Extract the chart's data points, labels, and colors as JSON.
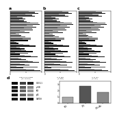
{
  "panels": [
    {
      "label": "a",
      "rows": [
        [
          0.95,
          0.75,
          0.5
        ],
        [
          0.4,
          0.85,
          0.2
        ],
        [
          0.6,
          0.45,
          0.3
        ],
        [
          0.9,
          0.7,
          0.55
        ],
        [
          0.5,
          0.35,
          0.25
        ],
        [
          0.85,
          0.65,
          0.45
        ],
        [
          0.3,
          0.55,
          0.15
        ],
        [
          0.7,
          0.5,
          0.35
        ],
        [
          0.45,
          0.3,
          0.2
        ],
        [
          0.8,
          0.6,
          0.4
        ],
        [
          0.25,
          0.2,
          0.12
        ],
        [
          0.55,
          0.65,
          0.38
        ],
        [
          0.65,
          0.48,
          0.32
        ],
        [
          0.35,
          0.28,
          0.18
        ],
        [
          0.6,
          0.45,
          0.3
        ],
        [
          0.72,
          0.68,
          0.42
        ],
        [
          0.82,
          0.72,
          0.52
        ],
        [
          0.92,
          0.88,
          0.62
        ],
        [
          0.52,
          0.42,
          0.28
        ],
        [
          0.48,
          0.38,
          0.22
        ],
        [
          0.78,
          0.68,
          0.48
        ],
        [
          0.88,
          0.78,
          0.58
        ]
      ],
      "xlim": [
        0,
        1
      ],
      "xlabel": "Log2 Fold Change\n(vs. control)",
      "xtick_labels": [
        "0",
        "1",
        "2",
        "3",
        "4",
        "5"
      ]
    },
    {
      "label": "b",
      "rows": [
        [
          0.95,
          0.75,
          0.5
        ],
        [
          0.2,
          0.85,
          0.1
        ],
        [
          0.7,
          0.5,
          0.3
        ],
        [
          0.88,
          0.68,
          0.48
        ],
        [
          0.55,
          0.38,
          0.22
        ],
        [
          0.82,
          0.62,
          0.42
        ],
        [
          0.35,
          0.58,
          0.18
        ],
        [
          0.72,
          0.52,
          0.32
        ],
        [
          0.42,
          0.28,
          0.15
        ],
        [
          0.78,
          0.58,
          0.38
        ],
        [
          0.28,
          0.22,
          0.12
        ],
        [
          0.52,
          0.62,
          0.35
        ],
        [
          0.62,
          0.45,
          0.28
        ],
        [
          0.32,
          0.25,
          0.15
        ],
        [
          0.58,
          0.42,
          0.25
        ],
        [
          0.68,
          0.65,
          0.4
        ],
        [
          0.8,
          0.7,
          0.5
        ],
        [
          0.9,
          0.85,
          0.6
        ],
        [
          0.48,
          0.38,
          0.25
        ],
        [
          0.45,
          0.35,
          0.2
        ],
        [
          0.75,
          0.65,
          0.45
        ],
        [
          0.85,
          0.75,
          0.55
        ]
      ],
      "xlim": [
        0,
        1
      ],
      "xlabel": "% of PBS\n(% PBS)",
      "xtick_labels": [
        "0",
        "1",
        "2",
        "3",
        "4",
        "5"
      ]
    },
    {
      "label": "c",
      "rows": [
        [
          0.92,
          0.72,
          0.48
        ],
        [
          0.38,
          0.82,
          0.18
        ],
        [
          0.65,
          0.48,
          0.28
        ],
        [
          0.85,
          0.65,
          0.45
        ],
        [
          0.52,
          0.35,
          0.2
        ],
        [
          0.8,
          0.6,
          0.4
        ],
        [
          0.32,
          0.55,
          0.15
        ],
        [
          0.68,
          0.48,
          0.3
        ],
        [
          0.4,
          0.28,
          0.15
        ],
        [
          0.75,
          0.55,
          0.35
        ],
        [
          0.22,
          0.18,
          0.1
        ],
        [
          0.5,
          0.6,
          0.32
        ],
        [
          0.6,
          0.42,
          0.25
        ],
        [
          0.3,
          0.22,
          0.12
        ],
        [
          0.55,
          0.4,
          0.22
        ],
        [
          0.65,
          0.62,
          0.38
        ],
        [
          0.78,
          0.68,
          0.48
        ],
        [
          0.88,
          0.82,
          0.58
        ],
        [
          0.45,
          0.35,
          0.22
        ],
        [
          0.42,
          0.32,
          0.18
        ],
        [
          0.72,
          0.62,
          0.42
        ],
        [
          0.82,
          0.72,
          0.52
        ]
      ],
      "xlim": [
        0,
        1
      ],
      "xlabel": "% of LPS\n(% LPS)",
      "xtick_labels": [
        "0",
        "1",
        "2",
        "3",
        "4",
        "5"
      ]
    }
  ],
  "row_labels_left": [
    "",
    "",
    "",
    "",
    "",
    "",
    "",
    "",
    "",
    "",
    "",
    "",
    "",
    "",
    "",
    "",
    "",
    "",
    "",
    "",
    "",
    ""
  ],
  "row_labels_right": [
    "",
    "",
    "",
    "",
    "",
    "",
    "",
    "",
    "",
    "",
    "",
    "",
    "",
    "",
    "",
    "",
    "",
    "",
    "",
    "",
    "",
    ""
  ],
  "bar_colors": [
    "#111111",
    "#555555",
    "#aaaaaa"
  ],
  "bg_color": "#ffffff",
  "wb_bands": [
    {
      "label": "CX3CL1",
      "cols": [
        0.05,
        0.25,
        0.12
      ]
    },
    {
      "label": "p-IKB",
      "cols": [
        0.08,
        0.35,
        0.55
      ]
    },
    {
      "label": "IKB",
      "cols": [
        0.1,
        0.4,
        0.6
      ]
    },
    {
      "label": "p65",
      "cols": [
        0.1,
        0.38,
        0.58
      ]
    },
    {
      "label": "GAPDH",
      "cols": [
        0.1,
        0.1,
        0.1
      ]
    }
  ],
  "d_bar_vals": [
    1.0,
    2.8,
    1.8
  ],
  "d_bar_colors": [
    "#aaaaaa",
    "#555555",
    "#888888"
  ],
  "d_bar_labels": [
    "PBS",
    "LPS",
    "LPS+Ab"
  ]
}
